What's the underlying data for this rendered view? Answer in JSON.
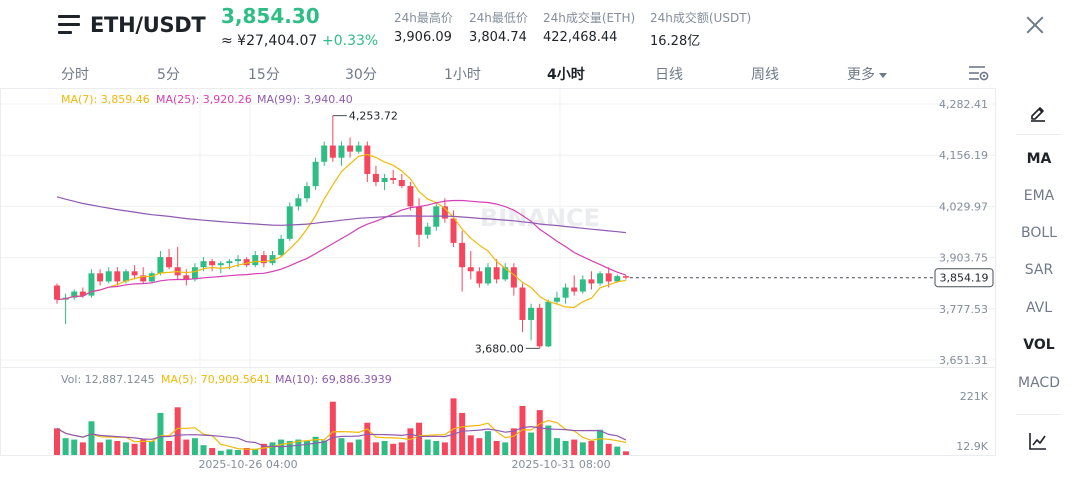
{
  "header": {
    "symbol": "ETH/USDT",
    "last_price": "3,854.30",
    "cny_price": "≈ ¥27,404.07",
    "change_pct": "+0.33%",
    "stats": [
      {
        "label": "24h最高价",
        "value": "3,906.09"
      },
      {
        "label": "24h最低价",
        "value": "3,804.74"
      },
      {
        "label": "24h成交量(ETH)",
        "value": "422,468.44"
      },
      {
        "label": "24h成交额(USDT)",
        "value": "16.28亿"
      }
    ]
  },
  "tabs": [
    "分时",
    "5分",
    "15分",
    "30分",
    "1小时",
    "4小时",
    "日线",
    "周线",
    "更多"
  ],
  "active_tab": "4小时",
  "legends": {
    "ma7": "MA(7): 3,859.46",
    "ma25": "MA(25): 3,920.26",
    "ma99": "MA(99): 3,940.40",
    "vol": "Vol: 12,887.1245",
    "ma5": "MA(5): 70,909.5641",
    "ma10": "MA(10): 69,886.3939"
  },
  "watermark": "BINANCE",
  "price_axis": [
    "4,282.41",
    "4,156.19",
    "4,029.97",
    "3,903.75",
    "3,777.53",
    "3,651.31"
  ],
  "current_price_tag": "3,854.19",
  "high_marker": "4,253.72",
  "low_marker": "3,680.00",
  "vol_axis": [
    "221K",
    "12.9K"
  ],
  "x_axis": [
    "2025-10-26 04:00",
    "2025-10-31 08:00"
  ],
  "indicators": [
    "MA",
    "EMA",
    "BOLL",
    "SAR",
    "AVL",
    "VOL",
    "MACD"
  ],
  "active_indicators": [
    "MA",
    "VOL"
  ],
  "colors": {
    "up": "#2ebd85",
    "down": "#f6465d",
    "ma7": "#f0b90b",
    "ma25": "#d63fb4",
    "ma99": "#8e5bb0",
    "ma5": "#f0b90b",
    "ma10": "#8e5bb0"
  },
  "chart_data": {
    "type": "candlestick",
    "interval": "4h",
    "candles": [
      [
        3835,
        3840,
        3790,
        3800
      ],
      [
        3800,
        3815,
        3740,
        3805
      ],
      [
        3805,
        3825,
        3800,
        3820
      ],
      [
        3820,
        3830,
        3805,
        3810
      ],
      [
        3810,
        3875,
        3805,
        3865
      ],
      [
        3865,
        3875,
        3835,
        3845
      ],
      [
        3845,
        3880,
        3840,
        3870
      ],
      [
        3870,
        3880,
        3835,
        3845
      ],
      [
        3845,
        3875,
        3840,
        3870
      ],
      [
        3870,
        3885,
        3850,
        3860
      ],
      [
        3860,
        3880,
        3840,
        3845
      ],
      [
        3845,
        3870,
        3840,
        3865
      ],
      [
        3865,
        3920,
        3860,
        3905
      ],
      [
        3905,
        3925,
        3875,
        3880
      ],
      [
        3880,
        3930,
        3850,
        3860
      ],
      [
        3860,
        3875,
        3835,
        3850
      ],
      [
        3850,
        3890,
        3845,
        3880
      ],
      [
        3880,
        3905,
        3870,
        3895
      ],
      [
        3895,
        3900,
        3870,
        3885
      ],
      [
        3885,
        3895,
        3865,
        3890
      ],
      [
        3890,
        3900,
        3875,
        3895
      ],
      [
        3895,
        3910,
        3880,
        3900
      ],
      [
        3900,
        3905,
        3880,
        3885
      ],
      [
        3885,
        3920,
        3880,
        3910
      ],
      [
        3910,
        3920,
        3880,
        3890
      ],
      [
        3890,
        3920,
        3885,
        3910
      ],
      [
        3910,
        3960,
        3905,
        3950
      ],
      [
        3950,
        4040,
        3945,
        4030
      ],
      [
        4030,
        4060,
        4020,
        4050
      ],
      [
        4050,
        4090,
        4040,
        4080
      ],
      [
        4080,
        4150,
        4070,
        4140
      ],
      [
        4140,
        4190,
        4130,
        4180
      ],
      [
        4180,
        4253.72,
        4140,
        4150
      ],
      [
        4150,
        4190,
        4130,
        4180
      ],
      [
        4180,
        4200,
        4150,
        4165
      ],
      [
        4165,
        4190,
        4160,
        4180
      ],
      [
        4180,
        4190,
        4090,
        4110
      ],
      [
        4110,
        4130,
        4080,
        4090
      ],
      [
        4090,
        4110,
        4070,
        4100
      ],
      [
        4100,
        4120,
        4085,
        4095
      ],
      [
        4095,
        4110,
        4075,
        4080
      ],
      [
        4080,
        4090,
        4020,
        4030
      ],
      [
        4030,
        4050,
        3930,
        3960
      ],
      [
        3960,
        3990,
        3950,
        3980
      ],
      [
        3980,
        4040,
        3970,
        4030
      ],
      [
        4030,
        4050,
        3990,
        4000
      ],
      [
        4000,
        4020,
        3930,
        3940
      ],
      [
        3940,
        3970,
        3820,
        3880
      ],
      [
        3880,
        3920,
        3850,
        3870
      ],
      [
        3870,
        3880,
        3830,
        3840
      ],
      [
        3840,
        3890,
        3835,
        3880
      ],
      [
        3880,
        3900,
        3840,
        3850
      ],
      [
        3850,
        3890,
        3845,
        3880
      ],
      [
        3880,
        3890,
        3810,
        3830
      ],
      [
        3830,
        3840,
        3720,
        3750
      ],
      [
        3750,
        3790,
        3700,
        3780
      ],
      [
        3780,
        3790,
        3680,
        3685
      ],
      [
        3685,
        3800,
        3683,
        3795
      ],
      [
        3795,
        3820,
        3790,
        3805
      ],
      [
        3805,
        3840,
        3790,
        3830
      ],
      [
        3830,
        3860,
        3810,
        3820
      ],
      [
        3820,
        3860,
        3815,
        3850
      ],
      [
        3850,
        3870,
        3825,
        3840
      ],
      [
        3840,
        3870,
        3835,
        3865
      ],
      [
        3865,
        3880,
        3830,
        3845
      ],
      [
        3845,
        3862,
        3842,
        3858
      ],
      [
        3858,
        3860,
        3850,
        3854.19
      ]
    ],
    "volume": [
      95000,
      60000,
      55000,
      45000,
      120000,
      45000,
      55000,
      50000,
      45000,
      40000,
      55000,
      50000,
      150000,
      50000,
      170000,
      55000,
      60000,
      35000,
      25000,
      15000,
      20000,
      18000,
      25000,
      22000,
      40000,
      45000,
      55000,
      50000,
      55000,
      50000,
      65000,
      52000,
      190000,
      60000,
      45000,
      55000,
      115000,
      45000,
      50000,
      40000,
      45000,
      95000,
      115000,
      55000,
      50000,
      45000,
      202000,
      150000,
      70000,
      60000,
      85000,
      50000,
      45000,
      95000,
      175000,
      80000,
      160000,
      105000,
      60000,
      50000,
      55000,
      45000,
      50000,
      90000,
      40000,
      30000,
      12887
    ],
    "ma7_last": 3859.46,
    "ma25_last": 3920.26,
    "ma99_last": 3940.4,
    "price_range": [
      3651.31,
      4282.41
    ],
    "volume_range": [
      12900,
      221000
    ]
  }
}
